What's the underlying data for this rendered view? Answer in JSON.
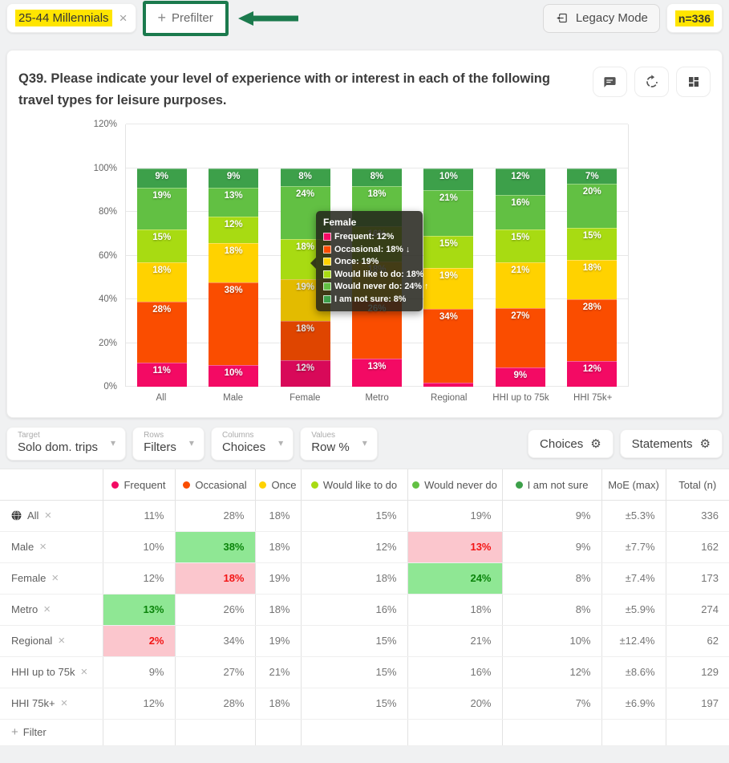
{
  "topbar": {
    "filter_chip": {
      "label": "25-44 Millennials"
    },
    "prefilter_label": "Prefilter",
    "legacy_label": "Legacy Mode",
    "n_badge": "n=336",
    "highlight_color": "#FFE500",
    "annotation_color": "#1B7A4D"
  },
  "chart_card": {
    "title": "Q39. Please indicate your level of experience with or interest in each of the following travel types for leisure purposes.",
    "action_icons": [
      "comment-icon",
      "refresh-icon",
      "dashboard-icon"
    ]
  },
  "chart_data": {
    "type": "bar",
    "stacked": true,
    "orientation": "vertical",
    "categories": [
      "All",
      "Male",
      "Female",
      "Metro",
      "Regional",
      "HHI up to 75k",
      "HHI 75k+"
    ],
    "series": [
      {
        "name": "Frequent",
        "color": "#F30A64",
        "values": [
          11,
          10,
          12,
          13,
          2,
          9,
          12
        ]
      },
      {
        "name": "Occasional",
        "color": "#FA4D00",
        "values": [
          28,
          38,
          18,
          26,
          34,
          27,
          28
        ]
      },
      {
        "name": "Once",
        "color": "#FFD200",
        "values": [
          18,
          18,
          19,
          18,
          19,
          21,
          18
        ]
      },
      {
        "name": "Would like to do",
        "color": "#A8DB12",
        "values": [
          15,
          12,
          18,
          16,
          15,
          15,
          15
        ]
      },
      {
        "name": "Would never do",
        "color": "#62C043",
        "values": [
          19,
          13,
          24,
          18,
          21,
          16,
          20
        ]
      },
      {
        "name": "I am not sure",
        "color": "#3DA04A",
        "values": [
          9,
          9,
          8,
          8,
          10,
          12,
          7
        ]
      }
    ],
    "yticks": [
      "0%",
      "20%",
      "40%",
      "60%",
      "80%",
      "100%",
      "120%"
    ],
    "ylim": [
      0,
      120
    ],
    "grid": true,
    "legend": "none",
    "value_suffix": "%",
    "hovered_category": "Female",
    "tooltip": {
      "title": "Female",
      "items": [
        {
          "label": "Frequent",
          "value": "12%",
          "arrow": ""
        },
        {
          "label": "Occasional",
          "value": "18%",
          "arrow": "↓"
        },
        {
          "label": "Once",
          "value": "19%",
          "arrow": ""
        },
        {
          "label": "Would like to do",
          "value": "18%",
          "arrow": ""
        },
        {
          "label": "Would never do",
          "value": "24%",
          "arrow": "↑"
        },
        {
          "label": "I am not sure",
          "value": "8%",
          "arrow": ""
        }
      ]
    }
  },
  "controls": {
    "dropdowns": [
      {
        "label": "Target",
        "value": "Solo dom. trips"
      },
      {
        "label": "Rows",
        "value": "Filters"
      },
      {
        "label": "Columns",
        "value": "Choices"
      },
      {
        "label": "Values",
        "value": "Row %"
      }
    ],
    "buttons": [
      {
        "label": "Choices"
      },
      {
        "label": "Statements"
      }
    ]
  },
  "table": {
    "headers": [
      {
        "label": "Frequent",
        "dot": "#F30A64"
      },
      {
        "label": "Occasional",
        "dot": "#FA4D00"
      },
      {
        "label": "Once",
        "dot": "#FFD200"
      },
      {
        "label": "Would like to do",
        "dot": "#A8DB12"
      },
      {
        "label": "Would never do",
        "dot": "#62C043"
      },
      {
        "label": "I am not sure",
        "dot": "#3DA04A"
      },
      {
        "label": "MoE (max)"
      },
      {
        "label": "Total (n)"
      }
    ],
    "highlight_colors": {
      "green_bg": "#8FE794",
      "green_text": "#0B840B",
      "pink_bg": "#FBC6CD",
      "pink_text": "#F31515"
    },
    "rows": [
      {
        "label": "All",
        "icon": "globe",
        "cells": [
          {
            "v": "11%"
          },
          {
            "v": "28%"
          },
          {
            "v": "18%"
          },
          {
            "v": "15%"
          },
          {
            "v": "19%"
          },
          {
            "v": "9%"
          }
        ],
        "moe": "±5.3%",
        "total": "336"
      },
      {
        "label": "Male",
        "cells": [
          {
            "v": "10%"
          },
          {
            "v": "38%",
            "hl": "green"
          },
          {
            "v": "18%"
          },
          {
            "v": "12%"
          },
          {
            "v": "13%",
            "hl": "pink"
          },
          {
            "v": "9%"
          }
        ],
        "moe": "±7.7%",
        "total": "162"
      },
      {
        "label": "Female",
        "cells": [
          {
            "v": "12%"
          },
          {
            "v": "18%",
            "hl": "pink"
          },
          {
            "v": "19%"
          },
          {
            "v": "18%"
          },
          {
            "v": "24%",
            "hl": "green"
          },
          {
            "v": "8%"
          }
        ],
        "moe": "±7.4%",
        "total": "173"
      },
      {
        "label": "Metro",
        "cells": [
          {
            "v": "13%",
            "hl": "green"
          },
          {
            "v": "26%"
          },
          {
            "v": "18%"
          },
          {
            "v": "16%"
          },
          {
            "v": "18%"
          },
          {
            "v": "8%"
          }
        ],
        "moe": "±5.9%",
        "total": "274"
      },
      {
        "label": "Regional",
        "cells": [
          {
            "v": "2%",
            "hl": "pink"
          },
          {
            "v": "34%"
          },
          {
            "v": "19%"
          },
          {
            "v": "15%"
          },
          {
            "v": "21%"
          },
          {
            "v": "10%"
          }
        ],
        "moe": "±12.4%",
        "total": "62"
      },
      {
        "label": "HHI up to 75k",
        "cells": [
          {
            "v": "9%"
          },
          {
            "v": "27%"
          },
          {
            "v": "21%"
          },
          {
            "v": "15%"
          },
          {
            "v": "16%"
          },
          {
            "v": "12%"
          }
        ],
        "moe": "±8.6%",
        "total": "129"
      },
      {
        "label": "HHI 75k+",
        "cells": [
          {
            "v": "12%"
          },
          {
            "v": "28%"
          },
          {
            "v": "18%"
          },
          {
            "v": "15%"
          },
          {
            "v": "20%"
          },
          {
            "v": "7%"
          }
        ],
        "moe": "±6.9%",
        "total": "197"
      }
    ],
    "add_filter_label": "Filter"
  }
}
